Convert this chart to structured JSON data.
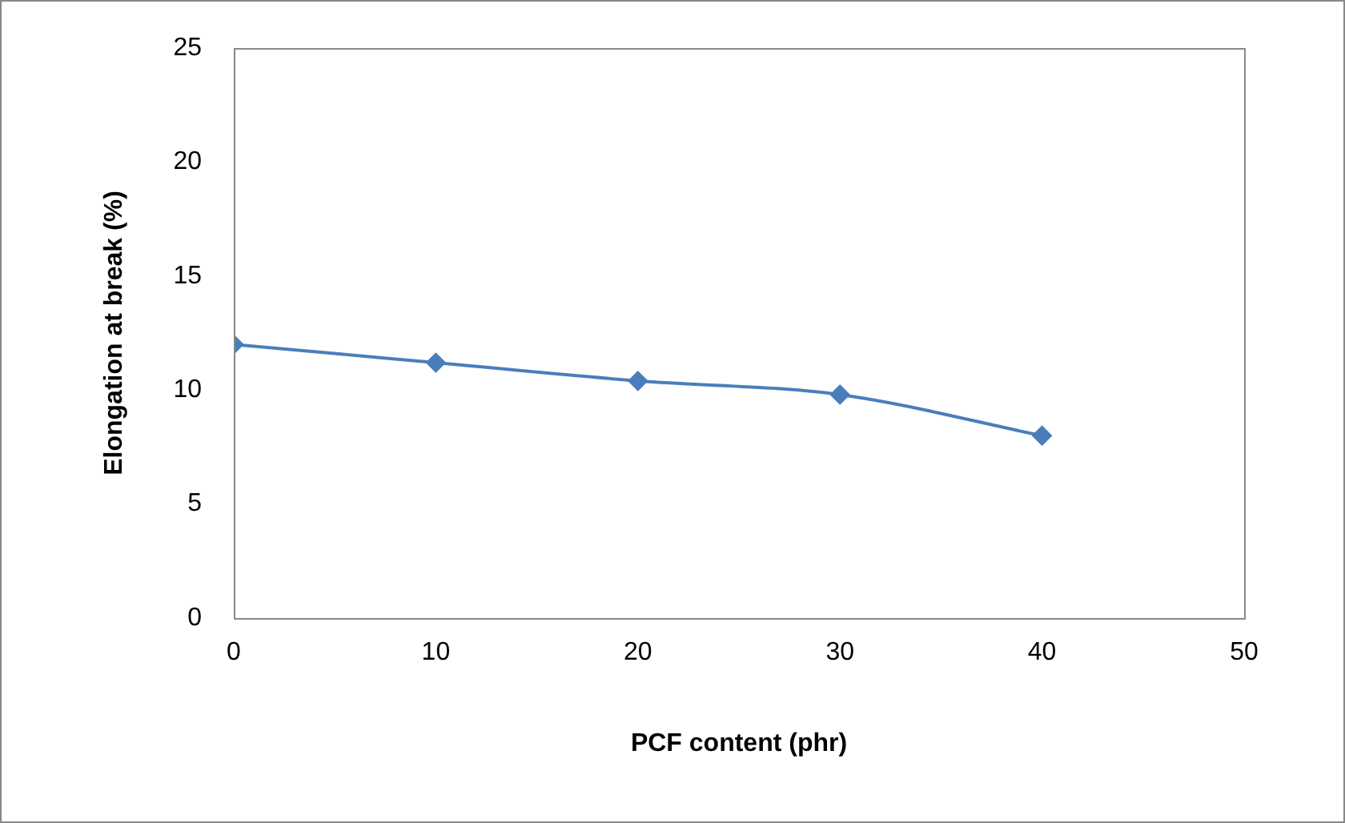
{
  "chart_data": {
    "type": "line",
    "xlabel": "PCF content (phr)",
    "ylabel": "Elongation at break (%)",
    "x": [
      0,
      10,
      20,
      30,
      40
    ],
    "series": [
      {
        "color": "#4a7ebb",
        "values": [
          12,
          11.2,
          10.4,
          9.8,
          8
        ]
      }
    ],
    "xlim": [
      0,
      50
    ],
    "xticks": [
      0,
      10,
      20,
      30,
      40,
      50
    ],
    "ylim": [
      0,
      25
    ],
    "yticks": [
      0,
      5,
      10,
      15,
      20,
      25
    ],
    "grid": false,
    "legend": false,
    "marker": "diamond",
    "line_style": "solid"
  }
}
